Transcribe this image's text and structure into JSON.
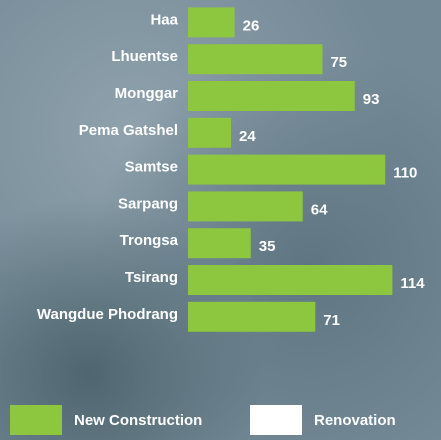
{
  "chart_data": {
    "type": "hbar",
    "categories": [
      "Haa",
      "Lhuentse",
      "Monggar",
      "Pema Gatshel",
      "Samtse",
      "Sarpang",
      "Trongsa",
      "Tsirang",
      "Wangdue Phodrang"
    ],
    "series": [
      {
        "name": "New Construction",
        "color": "#8dc63f",
        "values": [
          26,
          75,
          93,
          24,
          110,
          64,
          35,
          114,
          71
        ]
      },
      {
        "name": "Renovation",
        "color": "#ffffff",
        "values": [
          null,
          null,
          null,
          null,
          null,
          null,
          null,
          null,
          null
        ]
      }
    ],
    "xlim": [
      0,
      140
    ],
    "legend": "bottom"
  }
}
